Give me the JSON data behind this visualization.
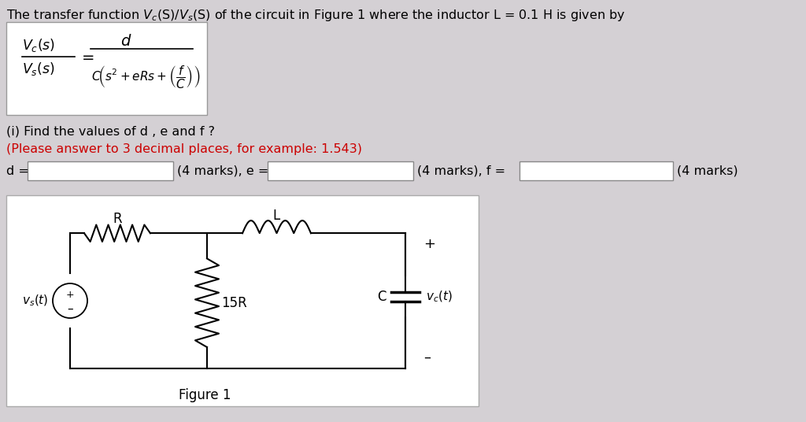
{
  "bg_color": "#d4d0d4",
  "title_text": "The transfer function V_c(S)/V_s(S) of the circuit in Figure 1 where the inductor L = 0.1 H is given by",
  "question_i": "(i) Find the values of d , e and f ?",
  "question_note": "(Please answer to 3 decimal places, for example: 1.543)",
  "figure_label": "Figure 1",
  "white_box_color": "#ffffff",
  "text_color": "#000000",
  "red_color": "#cc0000",
  "font_size": 11.5
}
